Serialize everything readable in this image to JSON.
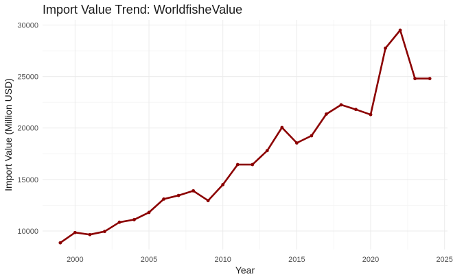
{
  "chart_data": {
    "type": "line",
    "title": "Import Value Trend: WorldfisheValue",
    "xlabel": "Year",
    "ylabel": "Import Value (Million USD)",
    "xlim": [
      1997.8,
      2025.2
    ],
    "ylim": [
      8200,
      30500
    ],
    "x_ticks": [
      2000,
      2005,
      2010,
      2015,
      2020,
      2025
    ],
    "y_ticks": [
      10000,
      15000,
      20000,
      25000,
      30000
    ],
    "grid": true,
    "line_color": "#8b0000",
    "series": [
      {
        "x": [
          1999,
          2000,
          2001,
          2002,
          2003,
          2004,
          2005,
          2006,
          2007,
          2008,
          2009,
          2010,
          2011,
          2012,
          2013,
          2014,
          2015,
          2016,
          2017,
          2018,
          2019,
          2020,
          2021,
          2022,
          2023,
          2024
        ],
        "y": [
          8850,
          9850,
          9650,
          9950,
          10850,
          11100,
          11800,
          13100,
          13450,
          13900,
          12950,
          14500,
          16450,
          16450,
          17800,
          20050,
          18550,
          19250,
          21350,
          22250,
          21800,
          21300,
          27750,
          29500,
          24800,
          24800
        ]
      }
    ]
  }
}
